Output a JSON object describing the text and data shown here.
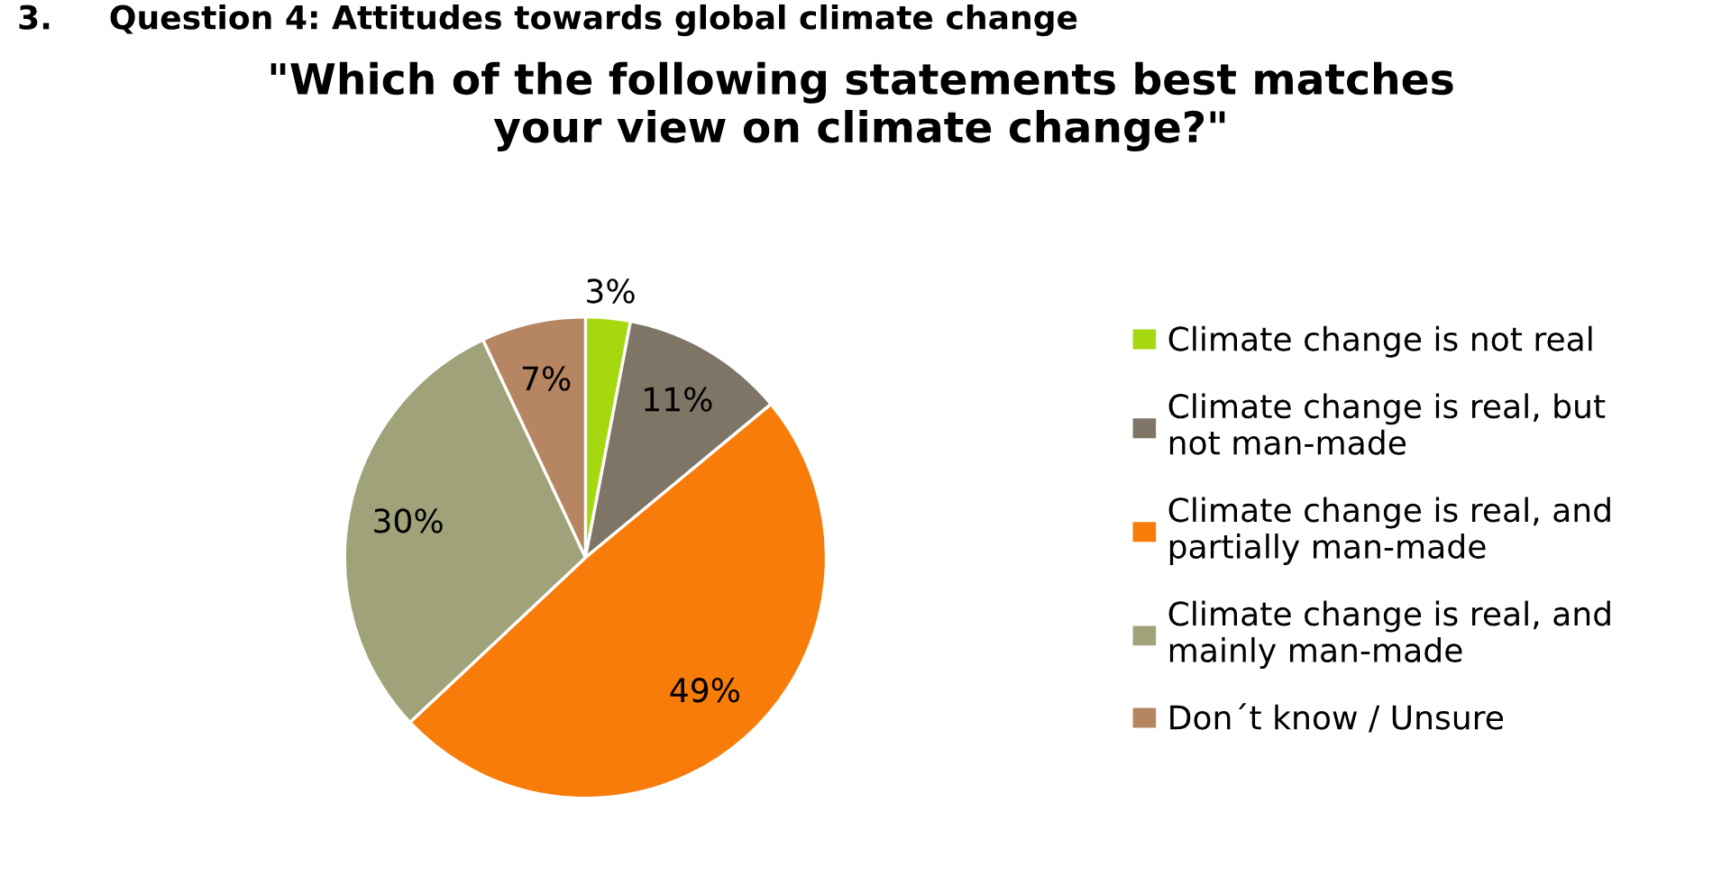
{
  "chart_data": {
    "type": "pie",
    "title": "\"Which of the following statements best matches\nyour view on climate change?\"",
    "annotations": [
      "3.     Question 4: Attitudes towards global climate change"
    ],
    "categories": [
      "Climate change is not real",
      "Climate change is real, but\nnot man-made",
      "Climate change is real, and\npartially man-made",
      "Climate change is real, and\nmainly man-made",
      "Don´t know / Unsure"
    ],
    "values": [
      3,
      11,
      49,
      30,
      7
    ],
    "value_labels": [
      "3%",
      "11%",
      "49%",
      "30%",
      "7%"
    ],
    "colors": [
      "#a6d80f",
      "#7f7566",
      "#f77c0a",
      "#a0a27a",
      "#b68561"
    ],
    "legend": "right"
  }
}
